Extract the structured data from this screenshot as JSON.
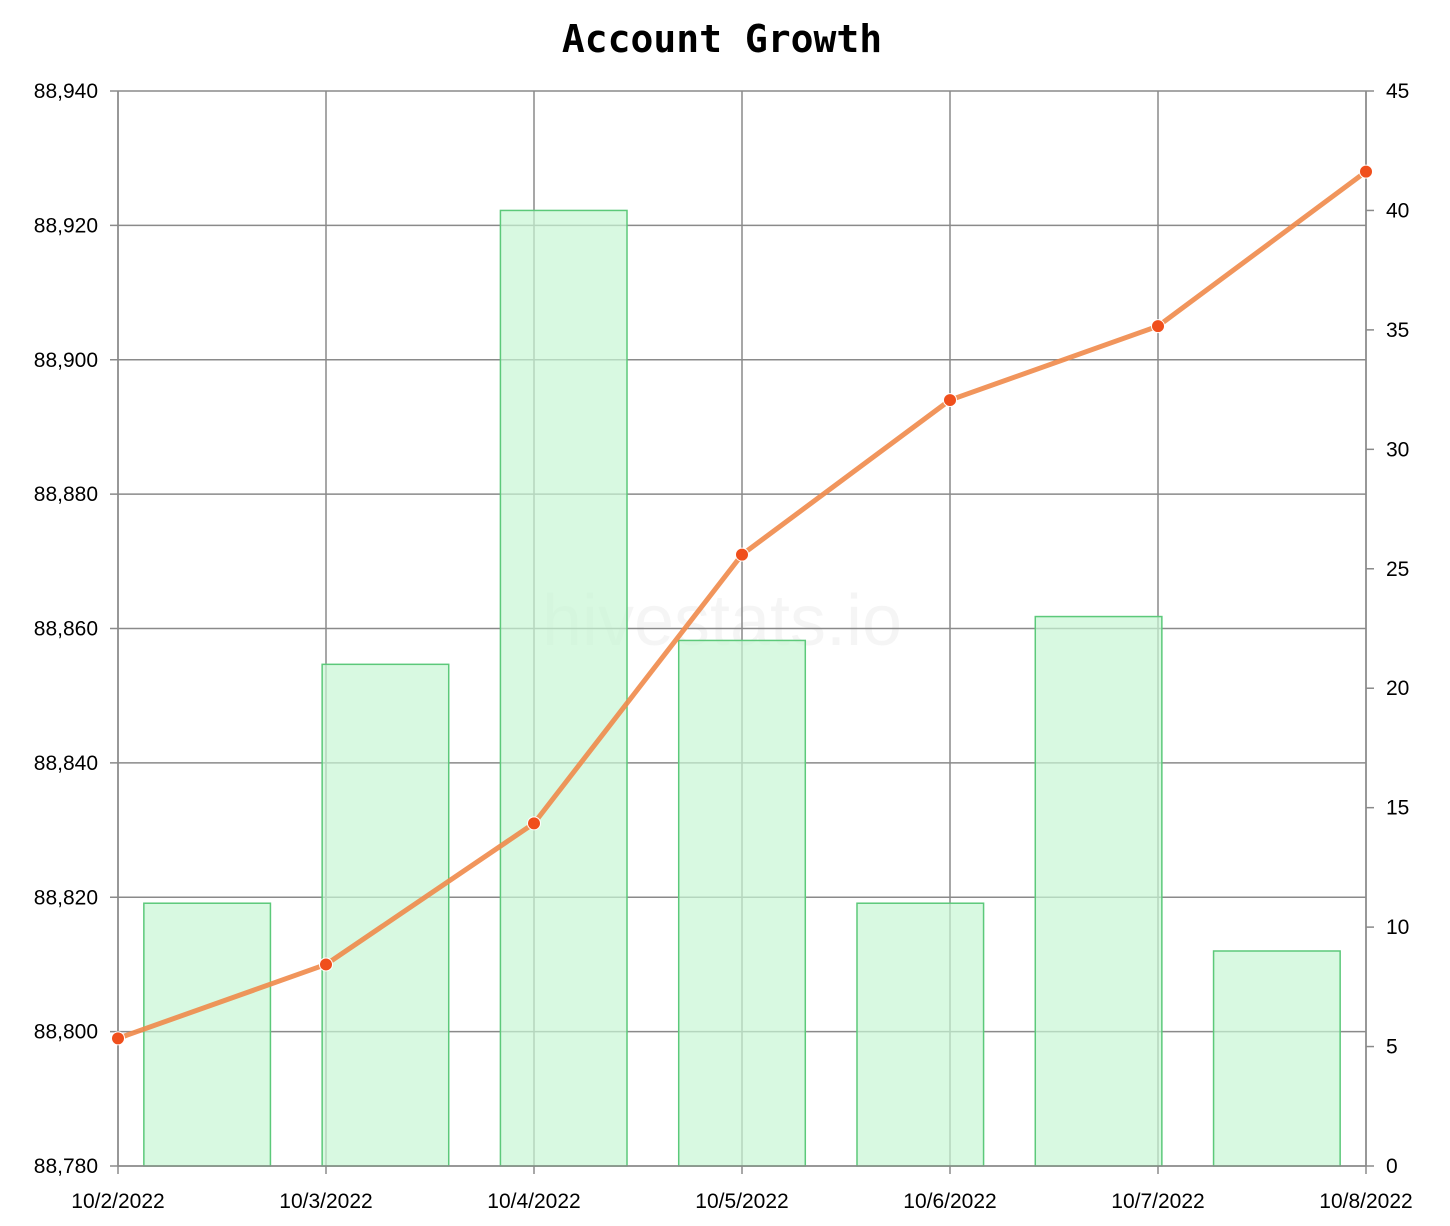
{
  "chart_data": {
    "type": "bar+line",
    "title": "Account Growth",
    "watermark": "hivestats.io",
    "categories": [
      "10/2/2022",
      "10/3/2022",
      "10/4/2022",
      "10/5/2022",
      "10/6/2022",
      "10/7/2022",
      "10/8/2022"
    ],
    "y_left": {
      "range": [
        88780,
        88940
      ],
      "ticks": [
        "88,780",
        "88,800",
        "88,820",
        "88,840",
        "88,860",
        "88,880",
        "88,900",
        "88,920",
        "88,940"
      ]
    },
    "y_right": {
      "range": [
        0,
        45
      ],
      "ticks": [
        "0",
        "5",
        "10",
        "15",
        "20",
        "25",
        "30",
        "35",
        "40",
        "45"
      ]
    },
    "series": [
      {
        "type": "line",
        "axis": "left",
        "color": "#ef8a4a",
        "marker_color": "#f04f1c",
        "x": [
          "10/2/2022",
          "10/3/2022",
          "10/4/2022",
          "10/5/2022",
          "10/6/2022",
          "10/7/2022",
          "10/8/2022"
        ],
        "values": [
          88799,
          88810,
          88831,
          88871,
          88894,
          88905,
          88928
        ]
      },
      {
        "type": "bar",
        "axis": "right",
        "color": "#c7f7d4",
        "border_color": "#5cc97a",
        "values": [
          11,
          21,
          40,
          22,
          11,
          23,
          9
        ]
      }
    ],
    "grid": true,
    "legend": "none"
  }
}
